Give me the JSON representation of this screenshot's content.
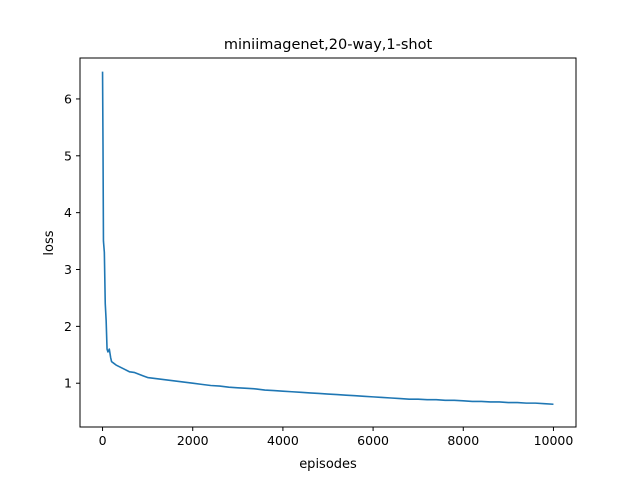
{
  "chart_data": {
    "type": "line",
    "title": "miniimagenet,20-way,1-shot",
    "xlabel": "episodes",
    "ylabel": "loss",
    "xlim": [
      -500,
      10500
    ],
    "ylim": [
      0.23,
      6.72
    ],
    "xticks": [
      0,
      2000,
      4000,
      6000,
      8000,
      10000
    ],
    "yticks": [
      1,
      2,
      3,
      4,
      5,
      6
    ],
    "grid": false,
    "legend": "none",
    "series": [
      {
        "color": "#1f77b4",
        "x": [
          0,
          10,
          20,
          40,
          60,
          80,
          100,
          120,
          150,
          180,
          200,
          250,
          300,
          350,
          400,
          500,
          600,
          700,
          800,
          900,
          1000,
          1200,
          1400,
          1600,
          1800,
          2000,
          2200,
          2400,
          2600,
          2800,
          3000,
          3200,
          3400,
          3600,
          3800,
          4000,
          4200,
          4400,
          4600,
          4800,
          5000,
          5200,
          5400,
          5600,
          5800,
          6000,
          6200,
          6400,
          6600,
          6800,
          7000,
          7200,
          7400,
          7600,
          7800,
          8000,
          8200,
          8400,
          8600,
          8800,
          9000,
          9200,
          9400,
          9600,
          9800,
          10000
        ],
        "y": [
          6.48,
          5.2,
          3.5,
          3.3,
          2.4,
          2.1,
          1.6,
          1.55,
          1.6,
          1.45,
          1.38,
          1.35,
          1.32,
          1.3,
          1.28,
          1.24,
          1.2,
          1.19,
          1.16,
          1.13,
          1.1,
          1.08,
          1.06,
          1.04,
          1.02,
          1.0,
          0.98,
          0.96,
          0.95,
          0.93,
          0.92,
          0.91,
          0.9,
          0.88,
          0.87,
          0.86,
          0.85,
          0.84,
          0.83,
          0.82,
          0.81,
          0.8,
          0.79,
          0.78,
          0.77,
          0.76,
          0.75,
          0.74,
          0.73,
          0.72,
          0.72,
          0.71,
          0.71,
          0.7,
          0.7,
          0.69,
          0.68,
          0.68,
          0.67,
          0.67,
          0.66,
          0.66,
          0.65,
          0.65,
          0.64,
          0.63
        ]
      }
    ]
  }
}
